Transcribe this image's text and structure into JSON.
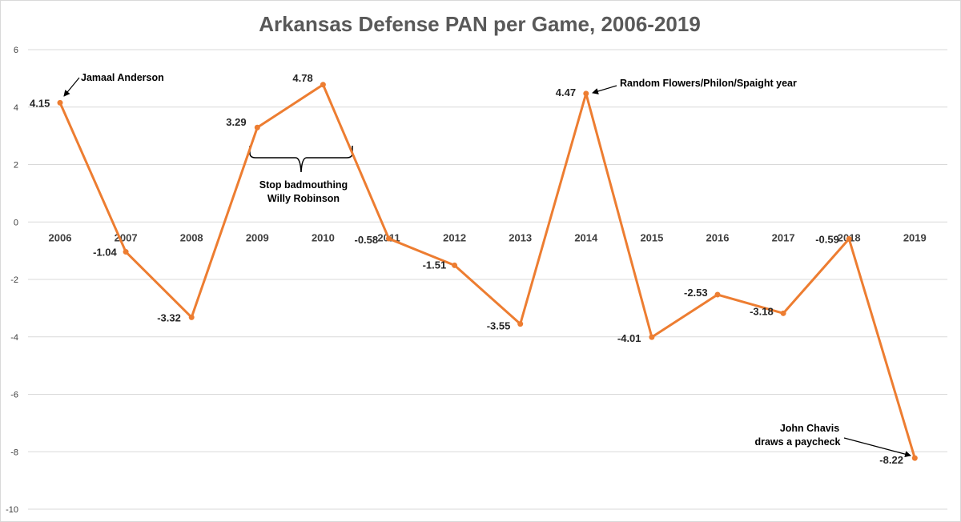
{
  "chart_data": {
    "type": "line",
    "title": "Arkansas Defense PAN per Game, 2006-2019",
    "xlabel": "",
    "ylabel": "",
    "ylim": [
      -10,
      6
    ],
    "yticks": [
      6,
      4,
      2,
      0,
      -2,
      -4,
      -6,
      -8,
      -10
    ],
    "categories": [
      "2006",
      "2007",
      "2008",
      "2009",
      "2010",
      "2011",
      "2012",
      "2013",
      "2014",
      "2015",
      "2016",
      "2017",
      "2018",
      "2019"
    ],
    "series": [
      {
        "name": "PAN per Game",
        "values": [
          4.15,
          -1.04,
          -3.32,
          3.29,
          4.78,
          -0.58,
          -1.51,
          -3.55,
          4.47,
          -4.01,
          -2.53,
          -3.18,
          -0.59,
          -8.22
        ],
        "labels": [
          "4.15",
          "-1.04",
          "-3.32",
          "3.29",
          "4.78",
          "-0.58",
          "-1.51",
          "-3.55",
          "4.47",
          "-4.01",
          "-2.53",
          "-3.18",
          "-0.59",
          "-8.22"
        ],
        "color": "#ed7d31"
      }
    ],
    "grid": true,
    "annotations": [
      {
        "id": "jamaal",
        "lines": [
          "Jamaal Anderson"
        ],
        "target_year": "2006"
      },
      {
        "id": "willy",
        "lines": [
          "Stop badmouthing",
          "Willy Robinson"
        ],
        "bracket_from": "2009",
        "bracket_to": "2010"
      },
      {
        "id": "flowers",
        "lines": [
          "Random Flowers/Philon/Spaight year"
        ],
        "target_year": "2014"
      },
      {
        "id": "chavis",
        "lines": [
          "John Chavis",
          "draws a paycheck"
        ],
        "target_year": "2019"
      }
    ]
  }
}
